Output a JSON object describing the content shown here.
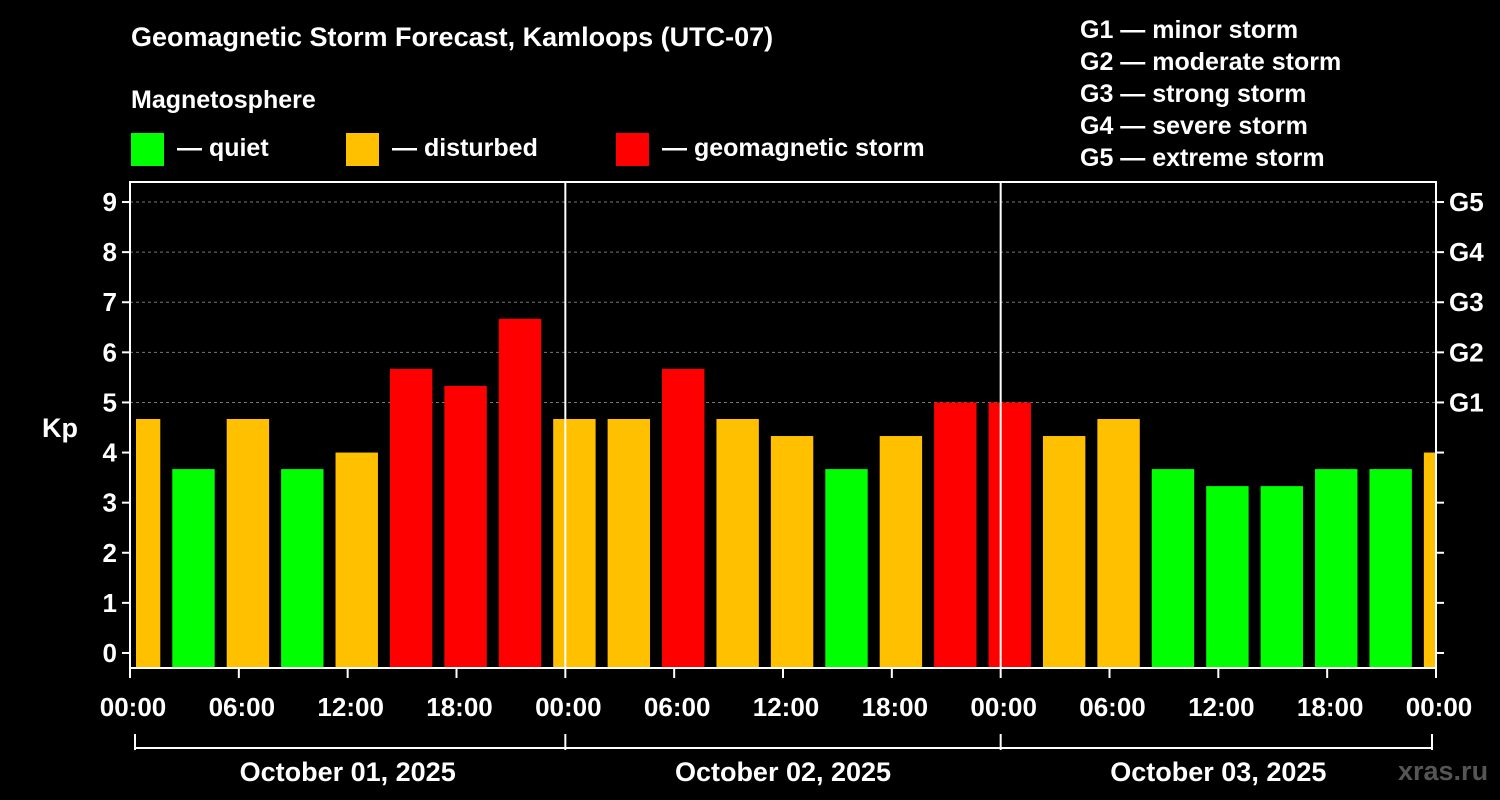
{
  "title": "Geomagnetic Storm Forecast, Kamloops (UTC-07)",
  "legend": {
    "heading": "Magnetosphere",
    "items": [
      {
        "label": "— quiet",
        "color": "#00ff00"
      },
      {
        "label": "— disturbed",
        "color": "#ffc000"
      },
      {
        "label": "— geomagnetic storm",
        "color": "#ff0000"
      }
    ]
  },
  "g_scale": [
    "G1 — minor storm",
    "G2 — moderate storm",
    "G3 — strong storm",
    "G4 — severe storm",
    "G5 — extreme storm"
  ],
  "watermark": "xras.ru",
  "chart_data": {
    "type": "bar",
    "title": "Geomagnetic Storm Forecast, Kamloops (UTC-07)",
    "ylabel": "Kp",
    "ylim": [
      -0.3,
      9.4
    ],
    "yticks": [
      "0",
      "1",
      "2",
      "3",
      "4",
      "5",
      "6",
      "7",
      "8",
      "9"
    ],
    "right_ticks": [
      {
        "label": "G1",
        "value": 5
      },
      {
        "label": "G2",
        "value": 6
      },
      {
        "label": "G3",
        "value": 7
      },
      {
        "label": "G4",
        "value": 8
      },
      {
        "label": "G5",
        "value": 9
      }
    ],
    "x_range_hours": [
      0,
      72
    ],
    "xticks": [
      {
        "label": "00:00",
        "hour": 0
      },
      {
        "label": "06:00",
        "hour": 6
      },
      {
        "label": "12:00",
        "hour": 12
      },
      {
        "label": "18:00",
        "hour": 18
      },
      {
        "label": "00:00",
        "hour": 24
      },
      {
        "label": "06:00",
        "hour": 30
      },
      {
        "label": "12:00",
        "hour": 36
      },
      {
        "label": "18:00",
        "hour": 42
      },
      {
        "label": "00:00",
        "hour": 48
      },
      {
        "label": "06:00",
        "hour": 54
      },
      {
        "label": "12:00",
        "hour": 60
      },
      {
        "label": "18:00",
        "hour": 66
      },
      {
        "label": "00:00",
        "hour": 72
      }
    ],
    "day_dividers": [
      24,
      48
    ],
    "days": [
      {
        "label": "October 01, 2025",
        "start": 0,
        "end": 24
      },
      {
        "label": "October 02, 2025",
        "start": 24,
        "end": 48
      },
      {
        "label": "October 03, 2025",
        "start": 48,
        "end": 72
      }
    ],
    "categories_colors": {
      "quiet": "#00ff00",
      "disturbed": "#ffc000",
      "storm": "#ff0000"
    },
    "bars": [
      {
        "start": 0,
        "end": 2,
        "kp": 4.67,
        "level": "disturbed"
      },
      {
        "start": 2,
        "end": 5,
        "kp": 3.67,
        "level": "quiet"
      },
      {
        "start": 5,
        "end": 8,
        "kp": 4.67,
        "level": "disturbed"
      },
      {
        "start": 8,
        "end": 11,
        "kp": 3.67,
        "level": "quiet"
      },
      {
        "start": 11,
        "end": 14,
        "kp": 4.0,
        "level": "disturbed"
      },
      {
        "start": 14,
        "end": 17,
        "kp": 5.67,
        "level": "storm"
      },
      {
        "start": 17,
        "end": 20,
        "kp": 5.33,
        "level": "storm"
      },
      {
        "start": 20,
        "end": 23,
        "kp": 6.67,
        "level": "storm"
      },
      {
        "start": 23,
        "end": 26,
        "kp": 4.67,
        "level": "disturbed"
      },
      {
        "start": 26,
        "end": 29,
        "kp": 4.67,
        "level": "disturbed"
      },
      {
        "start": 29,
        "end": 32,
        "kp": 5.67,
        "level": "storm"
      },
      {
        "start": 32,
        "end": 35,
        "kp": 4.67,
        "level": "disturbed"
      },
      {
        "start": 35,
        "end": 38,
        "kp": 4.33,
        "level": "disturbed"
      },
      {
        "start": 38,
        "end": 41,
        "kp": 3.67,
        "level": "quiet"
      },
      {
        "start": 41,
        "end": 44,
        "kp": 4.33,
        "level": "disturbed"
      },
      {
        "start": 44,
        "end": 47,
        "kp": 5.0,
        "level": "storm"
      },
      {
        "start": 47,
        "end": 50,
        "kp": 5.0,
        "level": "storm"
      },
      {
        "start": 50,
        "end": 53,
        "kp": 4.33,
        "level": "disturbed"
      },
      {
        "start": 53,
        "end": 56,
        "kp": 4.67,
        "level": "disturbed"
      },
      {
        "start": 56,
        "end": 59,
        "kp": 3.67,
        "level": "quiet"
      },
      {
        "start": 59,
        "end": 62,
        "kp": 3.33,
        "level": "quiet"
      },
      {
        "start": 62,
        "end": 65,
        "kp": 3.33,
        "level": "quiet"
      },
      {
        "start": 65,
        "end": 68,
        "kp": 3.67,
        "level": "quiet"
      },
      {
        "start": 68,
        "end": 71,
        "kp": 3.67,
        "level": "quiet"
      },
      {
        "start": 71,
        "end": 72,
        "kp": 4.0,
        "level": "disturbed"
      }
    ]
  }
}
